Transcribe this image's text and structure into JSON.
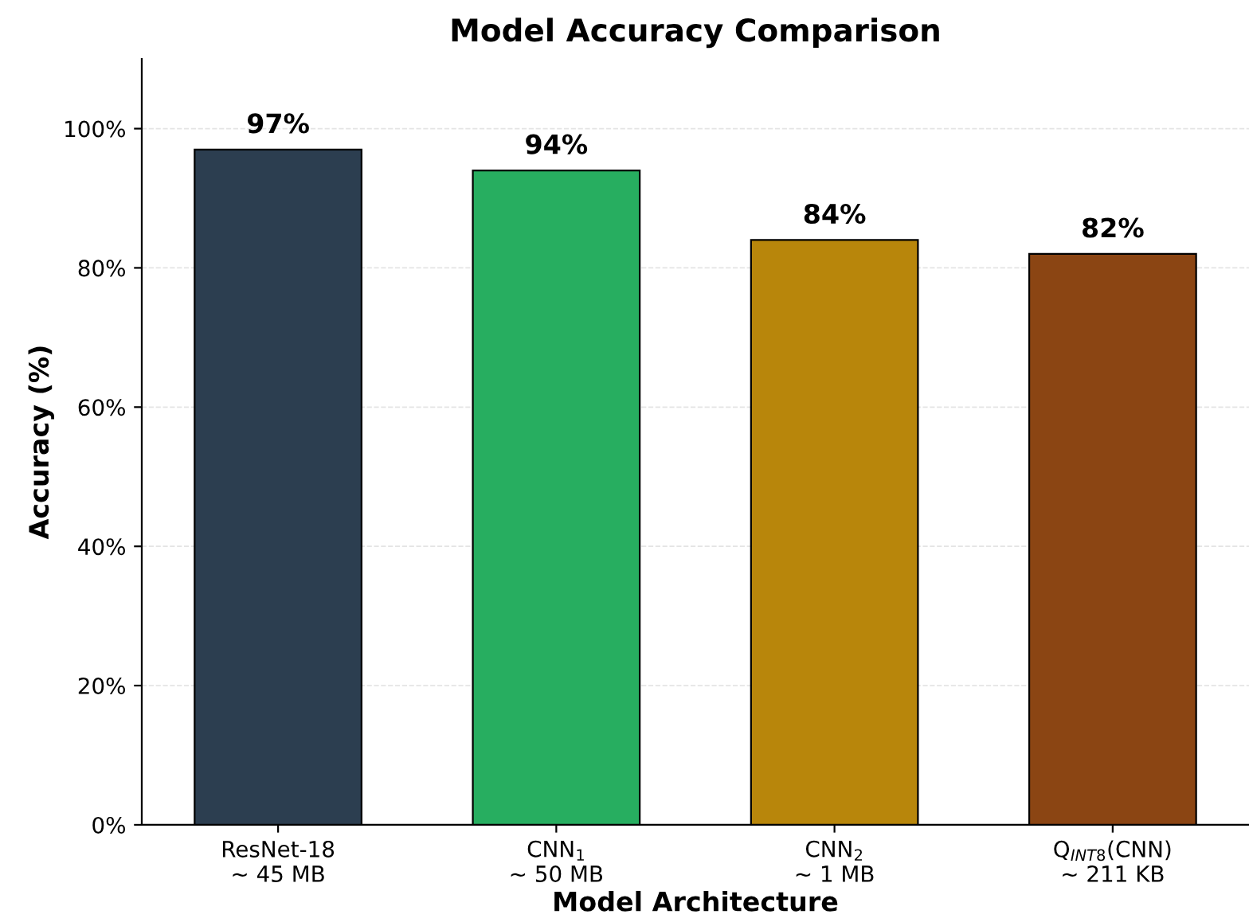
{
  "chart_data": {
    "type": "bar",
    "title": "Model Accuracy Comparison",
    "xlabel": "Model Architecture",
    "ylabel": "Accuracy (%)",
    "categories": [
      "ResNet-18\n~ 45 MB",
      "CNN$_{1}$\n~ 50 MB",
      "CNN$_{2}$\n~ 1 MB",
      "Q$_{INT8}$(CNN)\n~ 211 KB"
    ],
    "values": [
      97,
      94,
      84,
      82
    ],
    "colors": [
      "#2c3e50",
      "#27ae60",
      "#b8860b",
      "#8b4513"
    ],
    "value_labels": [
      "97%",
      "94%",
      "84%",
      "82%"
    ],
    "ylim": [
      0,
      110
    ],
    "yticks": [
      {
        "value": 0,
        "label": "0%"
      },
      {
        "value": 20,
        "label": "20%"
      },
      {
        "value": 40,
        "label": "40%"
      },
      {
        "value": 60,
        "label": "60%"
      },
      {
        "value": 80,
        "label": "80%"
      },
      {
        "value": 100,
        "label": "100%"
      }
    ],
    "grid": "y",
    "legend": false
  }
}
